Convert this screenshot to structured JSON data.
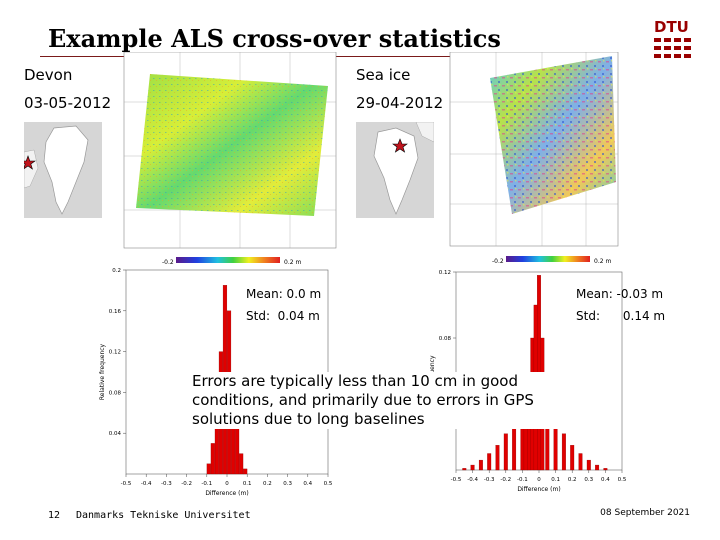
{
  "slide": {
    "title": "Example ALS cross-over statistics",
    "page_number": "12",
    "organization": "Danmarks Tekniske Universitet",
    "date": "08 September 2021",
    "logo_text": "DTU"
  },
  "left_case": {
    "region": "Devon",
    "date": "03-05-2012",
    "colorbar_min": "-0.2",
    "colorbar_max": "0.2 m",
    "stats": {
      "mean": "Mean: 0.0 m",
      "std": "Std:  0.04 m"
    }
  },
  "right_case": {
    "region": "Sea ice",
    "date": "29-04-2012",
    "colorbar_min": "-0.2",
    "colorbar_max": "0.2 m",
    "stats": {
      "mean": "Mean: -0.03 m",
      "std": "Std:      0.14 m"
    }
  },
  "caption": "Errors are typically less than 10 cm in good conditions, and primarily due to errors in GPS solutions due to long baselines",
  "colors": {
    "bar": "#e00000",
    "title_rule": "#7a1a1a",
    "star": "#c0141c",
    "logo": "#990000"
  },
  "chart_data": [
    {
      "type": "bar",
      "name": "left_histogram",
      "xlabel": "Difference (m)",
      "ylabel": "Relative frequency",
      "xlim": [
        -0.5,
        0.5
      ],
      "ylim": [
        0,
        0.2
      ],
      "x_ticks": [
        "-0.5",
        "-0.4",
        "-0.3",
        "-0.2",
        "-0.1",
        "0",
        "0.1",
        "0.2",
        "0.3",
        "0.4",
        "0.5"
      ],
      "y_ticks": [
        "0.2",
        "0.16",
        "0.12",
        "0.08",
        "0.04"
      ],
      "x": [
        -0.09,
        -0.07,
        -0.05,
        -0.03,
        -0.01,
        0.01,
        0.03,
        0.05,
        0.07,
        0.09
      ],
      "values": [
        0.01,
        0.03,
        0.07,
        0.12,
        0.185,
        0.16,
        0.09,
        0.05,
        0.02,
        0.005
      ]
    },
    {
      "type": "bar",
      "name": "right_histogram",
      "xlabel": "Difference (m)",
      "ylabel": "Frequency",
      "xlim": [
        -0.5,
        0.5
      ],
      "ylim": [
        0,
        0.12
      ],
      "x_ticks": [
        "-0.5",
        "-0.4",
        "-0.3",
        "-0.2",
        "-0.1",
        "0",
        "0.1",
        "0.2",
        "0.3",
        "0.4",
        "0.5"
      ],
      "y_ticks": [
        "0.12",
        "0.08",
        "0.04"
      ],
      "x": [
        -0.45,
        -0.4,
        -0.35,
        -0.3,
        -0.25,
        -0.2,
        -0.15,
        -0.1,
        -0.08,
        -0.06,
        -0.04,
        -0.02,
        0.0,
        0.02,
        0.05,
        0.1,
        0.15,
        0.2,
        0.25,
        0.3,
        0.35,
        0.4
      ],
      "values": [
        0.001,
        0.003,
        0.006,
        0.01,
        0.015,
        0.022,
        0.03,
        0.04,
        0.045,
        0.052,
        0.08,
        0.1,
        0.118,
        0.08,
        0.045,
        0.032,
        0.022,
        0.015,
        0.01,
        0.006,
        0.003,
        0.001
      ]
    }
  ]
}
